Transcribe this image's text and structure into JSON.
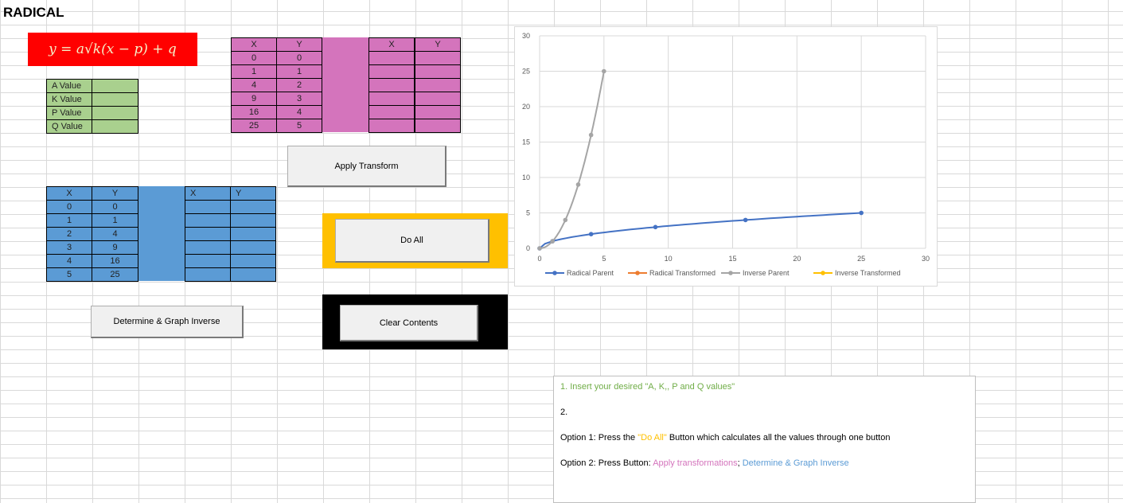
{
  "sheet": {
    "title": "RADICAL",
    "formula": "y = a√k(x − p) + q"
  },
  "params": {
    "rows": [
      {
        "label": "A Value",
        "value": ""
      },
      {
        "label": "K Value",
        "value": ""
      },
      {
        "label": "P Value",
        "value": ""
      },
      {
        "label": "Q Value",
        "value": ""
      }
    ]
  },
  "pink_table": {
    "headers": [
      "X",
      "Y",
      "X",
      "Y"
    ],
    "rows": [
      [
        "0",
        "0"
      ],
      [
        "1",
        "1"
      ],
      [
        "4",
        "2"
      ],
      [
        "9",
        "3"
      ],
      [
        "16",
        "4"
      ],
      [
        "25",
        "5"
      ]
    ]
  },
  "blue_table": {
    "headers": [
      "X",
      "Y",
      "X",
      "Y"
    ],
    "rows": [
      [
        "0",
        "0"
      ],
      [
        "1",
        "1"
      ],
      [
        "2",
        "4"
      ],
      [
        "3",
        "9"
      ],
      [
        "4",
        "16"
      ],
      [
        "5",
        "25"
      ]
    ]
  },
  "buttons": {
    "apply": "Apply Transform",
    "do_all": "Do All",
    "inverse": "Determine & Graph Inverse",
    "clear": "Clear Contents"
  },
  "colors": {
    "radical_parent": "#4472c4",
    "radical_transformed": "#ed7d31",
    "inverse_parent": "#a5a5a5",
    "inverse_transformed": "#ffc000"
  },
  "chart_data": {
    "type": "scatter",
    "title": "",
    "xlabel": "",
    "ylabel": "",
    "xlim": [
      0,
      30
    ],
    "ylim": [
      0,
      30
    ],
    "x_ticks": [
      0,
      5,
      10,
      15,
      20,
      25,
      30
    ],
    "y_ticks": [
      0,
      5,
      10,
      15,
      20,
      25,
      30
    ],
    "grid": true,
    "legend": "bottom",
    "series": [
      {
        "name": "Radical Parent",
        "x": [
          0,
          1,
          4,
          9,
          16,
          25
        ],
        "y": [
          0,
          1,
          2,
          3,
          4,
          5
        ]
      },
      {
        "name": "Radical Transformed",
        "x": [],
        "y": []
      },
      {
        "name": "Inverse Parent",
        "x": [
          0,
          1,
          2,
          3,
          4,
          5
        ],
        "y": [
          0,
          1,
          4,
          9,
          16,
          25
        ]
      },
      {
        "name": "Inverse Transformed",
        "x": [],
        "y": []
      }
    ]
  },
  "instructions": {
    "line1": "1. Insert your desired \"A, K,, P and Q values\"",
    "line2": "2.",
    "line3_a": "Option 1: Press the ",
    "line3_b": "\"Do All\"",
    "line3_c": " Button which calculates all the values through one button",
    "line4_a": "Option 2: Press Button: ",
    "line4_b": "Apply transformations",
    "line4_c": "; ",
    "line4_d": "Determine & Graph Inverse"
  }
}
